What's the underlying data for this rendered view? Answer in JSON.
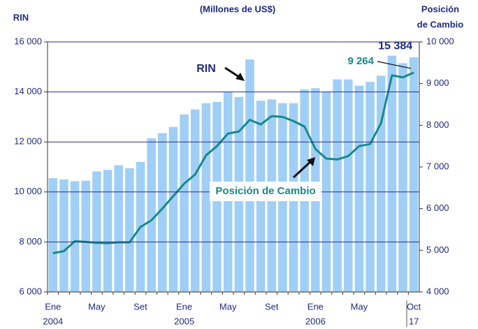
{
  "chart_data": {
    "type": "bar",
    "title": "(Millones de US$)",
    "ylabel": "RIN",
    "y2label": [
      "Posición",
      "de Cambio"
    ],
    "categories": [
      "Ene",
      null,
      null,
      null,
      "May",
      null,
      null,
      null,
      "Set",
      null,
      null,
      null,
      "Ene",
      null,
      null,
      null,
      "May",
      null,
      null,
      null,
      "Set",
      null,
      null,
      null,
      "Ene",
      null,
      null,
      null,
      "May",
      null,
      null,
      null,
      null,
      "Oct"
    ],
    "years": [
      "2004",
      null,
      null,
      null,
      null,
      null,
      null,
      null,
      null,
      null,
      null,
      null,
      "2005",
      null,
      null,
      null,
      null,
      null,
      null,
      null,
      null,
      null,
      null,
      null,
      "2006",
      null,
      null,
      null,
      null,
      null,
      null,
      null,
      null,
      "17"
    ],
    "series": [
      {
        "name": "RIN",
        "type": "bar",
        "color": "#9fcff7",
        "values": [
          10550,
          10500,
          10430,
          10450,
          10820,
          10880,
          11070,
          10950,
          11200,
          12150,
          12350,
          12600,
          13100,
          13300,
          13550,
          13600,
          14000,
          13800,
          15300,
          13650,
          13700,
          13550,
          13550,
          14100,
          14150,
          14000,
          14500,
          14500,
          14250,
          14400,
          14650,
          15450,
          15150,
          15384
        ],
        "value_labels": [
          null,
          null,
          null,
          null,
          null,
          null,
          null,
          null,
          null,
          null,
          null,
          null,
          null,
          null,
          null,
          null,
          null,
          null,
          null,
          null,
          null,
          null,
          null,
          null,
          null,
          null,
          null,
          null,
          null,
          null,
          null,
          null,
          null,
          "15 384"
        ],
        "label_color": "#1f2a80"
      },
      {
        "name": "Posición de Cambio",
        "type": "line",
        "axis": "y2",
        "color": "#17898a",
        "values": [
          4930,
          4980,
          5220,
          5200,
          5180,
          5170,
          5190,
          5190,
          5560,
          5720,
          6000,
          6300,
          6600,
          6820,
          7280,
          7500,
          7800,
          7850,
          8130,
          8020,
          8220,
          8200,
          8100,
          7970,
          7430,
          7200,
          7180,
          7260,
          7500,
          7550,
          8050,
          9200,
          9150,
          9264
        ],
        "value_labels": [
          null,
          null,
          null,
          null,
          null,
          null,
          null,
          null,
          null,
          null,
          null,
          null,
          null,
          null,
          null,
          null,
          null,
          null,
          null,
          null,
          null,
          null,
          null,
          null,
          null,
          null,
          null,
          null,
          null,
          null,
          null,
          null,
          null,
          "9 264"
        ]
      }
    ],
    "ylim": [
      6000,
      16000
    ],
    "yticks": [
      {
        "value": 6000,
        "label": "6 000"
      },
      {
        "value": 8000,
        "label": "8 000"
      },
      {
        "value": 10000,
        "label": "10 000"
      },
      {
        "value": 12000,
        "label": "12 000"
      },
      {
        "value": 14000,
        "label": "14 000"
      },
      {
        "value": 16000,
        "label": "16 000"
      }
    ],
    "y2lim": [
      4000,
      10000
    ],
    "y2ticks": [
      {
        "value": 4000,
        "label": "4 000"
      },
      {
        "value": 5000,
        "label": "5 000"
      },
      {
        "value": 6000,
        "label": "6 000"
      },
      {
        "value": 7000,
        "label": "7 000"
      },
      {
        "value": 8000,
        "label": "8 000"
      },
      {
        "value": 9000,
        "label": "9 000"
      },
      {
        "value": 10000,
        "label": "10 000"
      }
    ],
    "grid": true
  }
}
